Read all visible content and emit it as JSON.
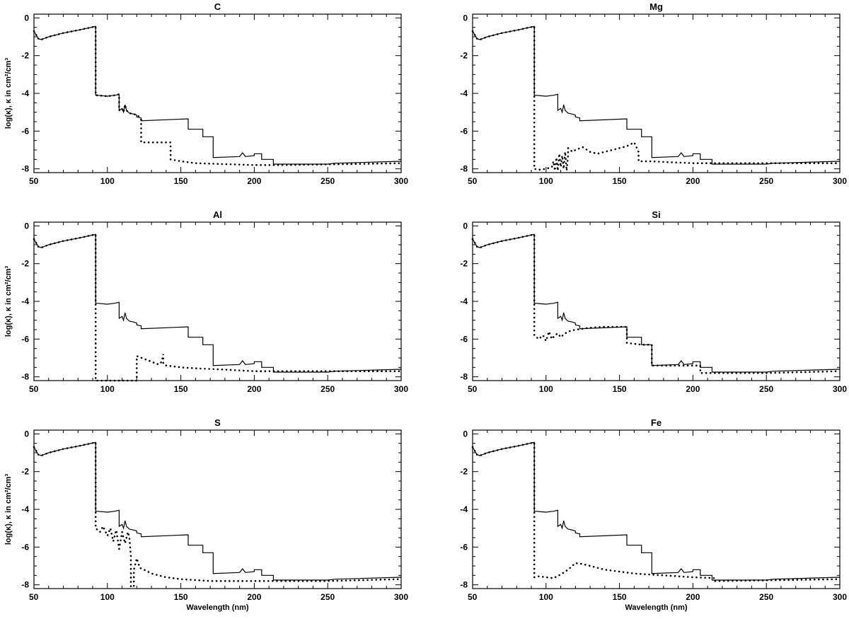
{
  "chart_data": [
    {
      "type": "line",
      "title": "C",
      "xlabel": "",
      "ylabel": "log(κ), κ in cm²/cm³",
      "xlim": [
        50,
        300
      ],
      "ylim": [
        -8.2,
        0.2
      ],
      "xticks": [
        50,
        100,
        150,
        200,
        250,
        300
      ],
      "yticks": [
        0,
        -2,
        -4,
        -6,
        -8
      ],
      "series": [
        {
          "style": "solid",
          "x": [
            50,
            53,
            55,
            60,
            70,
            80,
            92,
            92,
            93,
            100,
            105,
            108,
            108,
            110,
            111,
            112,
            113,
            115,
            118,
            120,
            120,
            123,
            123,
            155,
            155,
            165,
            165,
            172,
            172,
            190,
            192,
            194,
            200,
            200,
            205,
            205,
            213,
            213,
            250,
            255,
            300
          ],
          "y": [
            -0.7,
            -1.1,
            -1.15,
            -1.0,
            -0.8,
            -0.65,
            -0.45,
            -4.1,
            -4.1,
            -4.15,
            -4.1,
            -4.05,
            -4.9,
            -4.8,
            -5.0,
            -4.6,
            -4.9,
            -5.05,
            -5.1,
            -5.15,
            -5.25,
            -5.3,
            -5.45,
            -5.35,
            -5.9,
            -5.9,
            -6.3,
            -6.3,
            -7.4,
            -7.35,
            -7.15,
            -7.35,
            -7.3,
            -7.2,
            -7.2,
            -7.5,
            -7.5,
            -7.75,
            -7.75,
            -7.7,
            -7.6
          ]
        },
        {
          "style": "dotted",
          "x": [
            50,
            53,
            55,
            60,
            70,
            80,
            92,
            92,
            93,
            100,
            105,
            108,
            108,
            110,
            111,
            112,
            113,
            115,
            118,
            120,
            121,
            122,
            123,
            123,
            140,
            143,
            143,
            150,
            160,
            200,
            220,
            300
          ],
          "y": [
            -0.7,
            -1.1,
            -1.15,
            -1.0,
            -0.8,
            -0.65,
            -0.45,
            -4.1,
            -4.1,
            -4.15,
            -4.1,
            -4.05,
            -4.9,
            -4.8,
            -5.0,
            -4.6,
            -4.9,
            -5.05,
            -5.1,
            -5.15,
            -5.2,
            -5.3,
            -5.4,
            -6.6,
            -6.6,
            -6.6,
            -7.5,
            -7.6,
            -7.7,
            -7.8,
            -7.8,
            -7.7
          ]
        }
      ]
    },
    {
      "type": "line",
      "title": "Mg",
      "xlabel": "",
      "ylabel": "",
      "xlim": [
        50,
        300
      ],
      "ylim": [
        -8.2,
        0.2
      ],
      "xticks": [
        50,
        100,
        150,
        200,
        250,
        300
      ],
      "yticks": [
        0,
        -2,
        -4,
        -6,
        -8
      ],
      "series": [
        {
          "style": "solid",
          "x": [
            50,
            53,
            55,
            60,
            70,
            80,
            92,
            92,
            93,
            100,
            105,
            108,
            108,
            110,
            111,
            112,
            113,
            115,
            118,
            120,
            120,
            123,
            123,
            155,
            155,
            165,
            165,
            172,
            172,
            190,
            192,
            194,
            200,
            200,
            205,
            205,
            213,
            213,
            250,
            255,
            300
          ],
          "y": [
            -0.7,
            -1.1,
            -1.15,
            -1.0,
            -0.8,
            -0.65,
            -0.45,
            -4.1,
            -4.1,
            -4.15,
            -4.1,
            -4.05,
            -4.9,
            -4.8,
            -5.0,
            -4.6,
            -4.9,
            -5.05,
            -5.1,
            -5.15,
            -5.25,
            -5.3,
            -5.45,
            -5.35,
            -5.9,
            -5.9,
            -6.3,
            -6.3,
            -7.4,
            -7.35,
            -7.15,
            -7.35,
            -7.3,
            -7.2,
            -7.2,
            -7.5,
            -7.5,
            -7.75,
            -7.75,
            -7.7,
            -7.6
          ]
        },
        {
          "style": "dotted",
          "x": [
            50,
            53,
            55,
            60,
            70,
            80,
            92,
            92,
            95,
            100,
            104,
            105,
            106,
            107,
            108,
            109,
            110,
            111,
            112,
            113,
            114,
            115,
            115,
            118,
            120,
            125,
            130,
            135,
            145,
            155,
            160,
            163,
            163,
            170,
            200,
            300
          ],
          "y": [
            -0.7,
            -1.1,
            -1.15,
            -1.0,
            -0.8,
            -0.65,
            -0.45,
            -8.0,
            -8.05,
            -8.0,
            -7.9,
            -7.6,
            -8.1,
            -7.4,
            -8.1,
            -7.2,
            -7.9,
            -7.3,
            -8.0,
            -7.1,
            -8.1,
            -7.3,
            -6.9,
            -7.1,
            -7.0,
            -6.85,
            -7.1,
            -7.2,
            -7.0,
            -6.8,
            -6.6,
            -7.1,
            -7.6,
            -7.6,
            -7.7,
            -7.7
          ]
        }
      ]
    },
    {
      "type": "line",
      "title": "Al",
      "xlabel": "",
      "ylabel": "log(κ), κ in cm²/cm³",
      "xlim": [
        50,
        300
      ],
      "ylim": [
        -8.2,
        0.2
      ],
      "xticks": [
        50,
        100,
        150,
        200,
        250,
        300
      ],
      "yticks": [
        0,
        -2,
        -4,
        -6,
        -8
      ],
      "series": [
        {
          "style": "solid",
          "x": [
            50,
            53,
            55,
            60,
            70,
            80,
            92,
            92,
            93,
            100,
            105,
            108,
            108,
            110,
            111,
            112,
            113,
            115,
            118,
            120,
            120,
            123,
            123,
            155,
            155,
            165,
            165,
            172,
            172,
            190,
            192,
            194,
            200,
            200,
            205,
            205,
            213,
            213,
            250,
            255,
            300
          ],
          "y": [
            -0.7,
            -1.1,
            -1.15,
            -1.0,
            -0.8,
            -0.65,
            -0.45,
            -4.1,
            -4.1,
            -4.15,
            -4.1,
            -4.05,
            -4.9,
            -4.8,
            -5.0,
            -4.6,
            -4.9,
            -5.05,
            -5.1,
            -5.15,
            -5.25,
            -5.3,
            -5.45,
            -5.35,
            -5.9,
            -5.9,
            -6.3,
            -6.3,
            -7.4,
            -7.35,
            -7.15,
            -7.35,
            -7.3,
            -7.2,
            -7.2,
            -7.5,
            -7.5,
            -7.75,
            -7.75,
            -7.7,
            -7.6
          ]
        },
        {
          "style": "dotted",
          "x": [
            50,
            53,
            55,
            60,
            70,
            80,
            92,
            92,
            120,
            120,
            125,
            130,
            135,
            137,
            138,
            138,
            140,
            150,
            160,
            175,
            200,
            300
          ],
          "y": [
            -0.7,
            -1.1,
            -1.15,
            -1.0,
            -0.8,
            -0.65,
            -0.45,
            -8.2,
            -8.2,
            -6.9,
            -7.05,
            -7.2,
            -7.35,
            -7.2,
            -6.8,
            -7.3,
            -7.4,
            -7.5,
            -7.55,
            -7.6,
            -7.7,
            -7.7
          ]
        }
      ]
    },
    {
      "type": "line",
      "title": "Si",
      "xlabel": "",
      "ylabel": "",
      "xlim": [
        50,
        300
      ],
      "ylim": [
        -8.2,
        0.2
      ],
      "xticks": [
        50,
        100,
        150,
        200,
        250,
        300
      ],
      "yticks": [
        0,
        -2,
        -4,
        -6,
        -8
      ],
      "series": [
        {
          "style": "solid",
          "x": [
            50,
            53,
            55,
            60,
            70,
            80,
            92,
            92,
            93,
            100,
            105,
            108,
            108,
            110,
            111,
            112,
            113,
            115,
            118,
            120,
            120,
            123,
            123,
            155,
            155,
            165,
            165,
            172,
            172,
            190,
            192,
            194,
            200,
            200,
            205,
            205,
            213,
            213,
            250,
            255,
            300
          ],
          "y": [
            -0.7,
            -1.1,
            -1.15,
            -1.0,
            -0.8,
            -0.65,
            -0.45,
            -4.1,
            -4.1,
            -4.15,
            -4.1,
            -4.05,
            -4.9,
            -4.8,
            -5.0,
            -4.6,
            -4.9,
            -5.05,
            -5.1,
            -5.15,
            -5.25,
            -5.3,
            -5.45,
            -5.35,
            -5.9,
            -5.9,
            -6.3,
            -6.3,
            -7.4,
            -7.35,
            -7.15,
            -7.35,
            -7.3,
            -7.2,
            -7.2,
            -7.5,
            -7.5,
            -7.75,
            -7.75,
            -7.7,
            -7.6
          ]
        },
        {
          "style": "dotted",
          "x": [
            50,
            53,
            55,
            60,
            70,
            80,
            92,
            92,
            95,
            98,
            100,
            102,
            104,
            106,
            108,
            110,
            112,
            115,
            120,
            125,
            130,
            140,
            155,
            155,
            160,
            165,
            172,
            172,
            190,
            200,
            205,
            205,
            215,
            250,
            300
          ],
          "y": [
            -0.7,
            -1.1,
            -1.15,
            -1.0,
            -0.8,
            -0.65,
            -0.45,
            -5.8,
            -6.0,
            -5.8,
            -6.1,
            -5.6,
            -6.0,
            -5.8,
            -5.7,
            -5.9,
            -5.75,
            -5.6,
            -5.5,
            -5.45,
            -5.4,
            -5.35,
            -5.35,
            -6.2,
            -6.25,
            -6.3,
            -6.3,
            -7.4,
            -7.4,
            -7.4,
            -7.4,
            -7.8,
            -7.8,
            -7.8,
            -7.7
          ]
        }
      ]
    },
    {
      "type": "line",
      "title": "S",
      "xlabel": "Wavelength (nm)",
      "ylabel": "log(κ), κ in cm²/cm³",
      "xlim": [
        50,
        300
      ],
      "ylim": [
        -8.2,
        0.2
      ],
      "xticks": [
        50,
        100,
        150,
        200,
        250,
        300
      ],
      "yticks": [
        0,
        -2,
        -4,
        -6,
        -8
      ],
      "series": [
        {
          "style": "solid",
          "x": [
            50,
            53,
            55,
            60,
            70,
            80,
            92,
            92,
            93,
            100,
            105,
            108,
            108,
            110,
            111,
            112,
            113,
            115,
            118,
            120,
            120,
            123,
            123,
            155,
            155,
            165,
            165,
            172,
            172,
            190,
            192,
            194,
            200,
            200,
            205,
            205,
            213,
            213,
            250,
            255,
            300
          ],
          "y": [
            -0.7,
            -1.1,
            -1.15,
            -1.0,
            -0.8,
            -0.65,
            -0.45,
            -4.1,
            -4.1,
            -4.15,
            -4.1,
            -4.05,
            -4.9,
            -4.8,
            -5.0,
            -4.6,
            -4.9,
            -5.05,
            -5.1,
            -5.15,
            -5.25,
            -5.3,
            -5.45,
            -5.35,
            -5.9,
            -5.9,
            -6.3,
            -6.3,
            -7.4,
            -7.35,
            -7.15,
            -7.35,
            -7.3,
            -7.2,
            -7.2,
            -7.5,
            -7.5,
            -7.75,
            -7.75,
            -7.7,
            -7.6
          ]
        },
        {
          "style": "dotted",
          "x": [
            50,
            53,
            55,
            60,
            70,
            80,
            92,
            92,
            95,
            97,
            100,
            102,
            104,
            106,
            108,
            110,
            112,
            114,
            115,
            116,
            116,
            118,
            118,
            120,
            122,
            125,
            130,
            140,
            150,
            170,
            200,
            250,
            300
          ],
          "y": [
            -0.7,
            -1.1,
            -1.15,
            -1.0,
            -0.8,
            -0.65,
            -0.45,
            -5.0,
            -5.2,
            -4.9,
            -5.4,
            -5.0,
            -5.7,
            -5.1,
            -6.1,
            -5.2,
            -5.8,
            -5.2,
            -5.5,
            -6.5,
            -8.1,
            -8.1,
            -7.2,
            -6.6,
            -7.1,
            -7.2,
            -7.4,
            -7.6,
            -7.7,
            -7.8,
            -7.8,
            -7.8,
            -7.7
          ]
        }
      ]
    },
    {
      "type": "line",
      "title": "Fe",
      "xlabel": "Wavelength (nm)",
      "ylabel": "",
      "xlim": [
        50,
        300
      ],
      "ylim": [
        -8.2,
        0.2
      ],
      "xticks": [
        50,
        100,
        150,
        200,
        250,
        300
      ],
      "yticks": [
        0,
        -2,
        -4,
        -6,
        -8
      ],
      "series": [
        {
          "style": "solid",
          "x": [
            50,
            53,
            55,
            60,
            70,
            80,
            92,
            92,
            93,
            100,
            105,
            108,
            108,
            110,
            111,
            112,
            113,
            115,
            118,
            120,
            120,
            123,
            123,
            155,
            155,
            165,
            165,
            172,
            172,
            190,
            192,
            194,
            200,
            200,
            205,
            205,
            213,
            213,
            250,
            255,
            300
          ],
          "y": [
            -0.7,
            -1.1,
            -1.15,
            -1.0,
            -0.8,
            -0.65,
            -0.45,
            -4.1,
            -4.1,
            -4.15,
            -4.1,
            -4.05,
            -4.9,
            -4.8,
            -5.0,
            -4.6,
            -4.9,
            -5.05,
            -5.1,
            -5.15,
            -5.25,
            -5.3,
            -5.45,
            -5.35,
            -5.9,
            -5.9,
            -6.3,
            -6.3,
            -7.4,
            -7.35,
            -7.15,
            -7.35,
            -7.3,
            -7.2,
            -7.2,
            -7.5,
            -7.5,
            -7.75,
            -7.75,
            -7.7,
            -7.6
          ]
        },
        {
          "style": "dotted",
          "x": [
            50,
            53,
            55,
            60,
            70,
            80,
            92,
            92,
            95,
            100,
            105,
            110,
            115,
            120,
            125,
            130,
            140,
            150,
            160,
            170,
            180,
            200,
            215,
            215,
            300
          ],
          "y": [
            -0.7,
            -1.1,
            -1.15,
            -1.0,
            -0.8,
            -0.65,
            -0.45,
            -7.6,
            -7.55,
            -7.6,
            -7.65,
            -7.45,
            -7.2,
            -6.85,
            -6.9,
            -7.0,
            -7.2,
            -7.3,
            -7.4,
            -7.45,
            -7.5,
            -7.6,
            -7.65,
            -7.8,
            -7.7
          ]
        }
      ]
    }
  ]
}
